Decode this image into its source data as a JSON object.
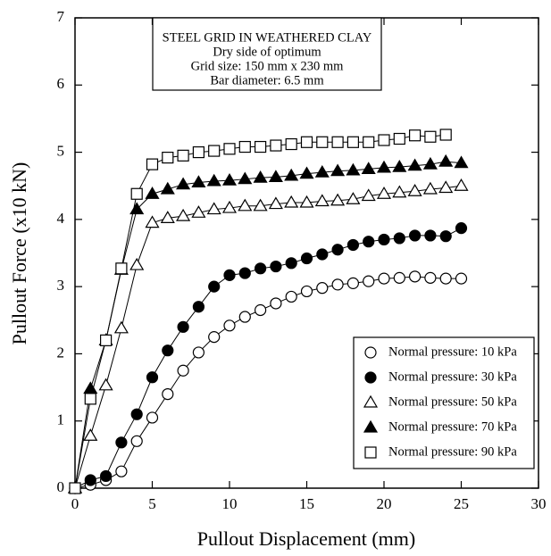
{
  "chart_data": {
    "type": "line",
    "x_label": "Pullout Displacement (mm)",
    "y_label": "Pullout  Force (x10 kN)",
    "annotations": [
      "STEEL GRID IN WEATHERED CLAY",
      "Dry side of optimum",
      "Grid size: 150 mm x 230 mm",
      "Bar diameter: 6.5 mm"
    ],
    "x": [
      0,
      1,
      2,
      3,
      4,
      5,
      6,
      7,
      8,
      9,
      10,
      11,
      12,
      13,
      14,
      15,
      16,
      17,
      18,
      19,
      20,
      21,
      22,
      23,
      24,
      25
    ],
    "series": [
      {
        "name": "Normal pressure: 10 kPa",
        "color": "#000000",
        "marker": "circle",
        "filled": false,
        "values": [
          0,
          0.05,
          0.12,
          0.25,
          0.7,
          1.05,
          1.4,
          1.75,
          2.02,
          2.25,
          2.42,
          2.55,
          2.65,
          2.75,
          2.85,
          2.93,
          2.98,
          3.03,
          3.05,
          3.08,
          3.12,
          3.13,
          3.15,
          3.13,
          3.12,
          3.12
        ]
      },
      {
        "name": "Normal pressure: 30 kPa",
        "color": "#000000",
        "marker": "circle",
        "filled": true,
        "values": [
          0,
          0.12,
          0.18,
          0.68,
          1.1,
          1.65,
          2.05,
          2.4,
          2.7,
          3.0,
          3.17,
          3.2,
          3.27,
          3.3,
          3.35,
          3.42,
          3.48,
          3.55,
          3.62,
          3.67,
          3.7,
          3.72,
          3.76,
          3.76,
          3.75,
          3.87
        ]
      },
      {
        "name": "Normal pressure: 50 kPa",
        "color": "#000000",
        "marker": "triangle",
        "filled": false,
        "values": [
          0,
          0.78,
          1.53,
          2.38,
          3.32,
          3.95,
          4.02,
          4.05,
          4.1,
          4.15,
          4.17,
          4.2,
          4.2,
          4.23,
          4.25,
          4.25,
          4.27,
          4.28,
          4.3,
          4.35,
          4.38,
          4.4,
          4.42,
          4.45,
          4.47,
          4.5
        ]
      },
      {
        "name": "Normal pressure: 70 kPa",
        "color": "#000000",
        "marker": "triangle",
        "filled": true,
        "values": [
          0,
          1.48,
          2.2,
          3.25,
          4.15,
          4.38,
          4.45,
          4.52,
          4.55,
          4.57,
          4.58,
          4.6,
          4.62,
          4.63,
          4.65,
          4.68,
          4.7,
          4.72,
          4.73,
          4.75,
          4.77,
          4.78,
          4.8,
          4.82,
          4.86,
          4.84
        ]
      },
      {
        "name": "Normal pressure: 90 kPa",
        "color": "#000000",
        "marker": "square",
        "filled": false,
        "values": [
          0,
          1.33,
          2.2,
          3.27,
          4.38,
          4.82,
          4.92,
          4.95,
          5.0,
          5.02,
          5.05,
          5.08,
          5.08,
          5.1,
          5.12,
          5.15,
          5.15,
          5.15,
          5.15,
          5.15,
          5.18,
          5.2,
          5.25,
          5.23,
          5.26,
          null
        ]
      }
    ],
    "xlim": [
      0,
      30
    ],
    "xticks": [
      0,
      5,
      10,
      15,
      20,
      25,
      30
    ],
    "ylim": [
      0,
      7
    ],
    "yticks": [
      0,
      1,
      2,
      3,
      4,
      5,
      6,
      7
    ],
    "grid": false,
    "legend_position": "lower right"
  }
}
